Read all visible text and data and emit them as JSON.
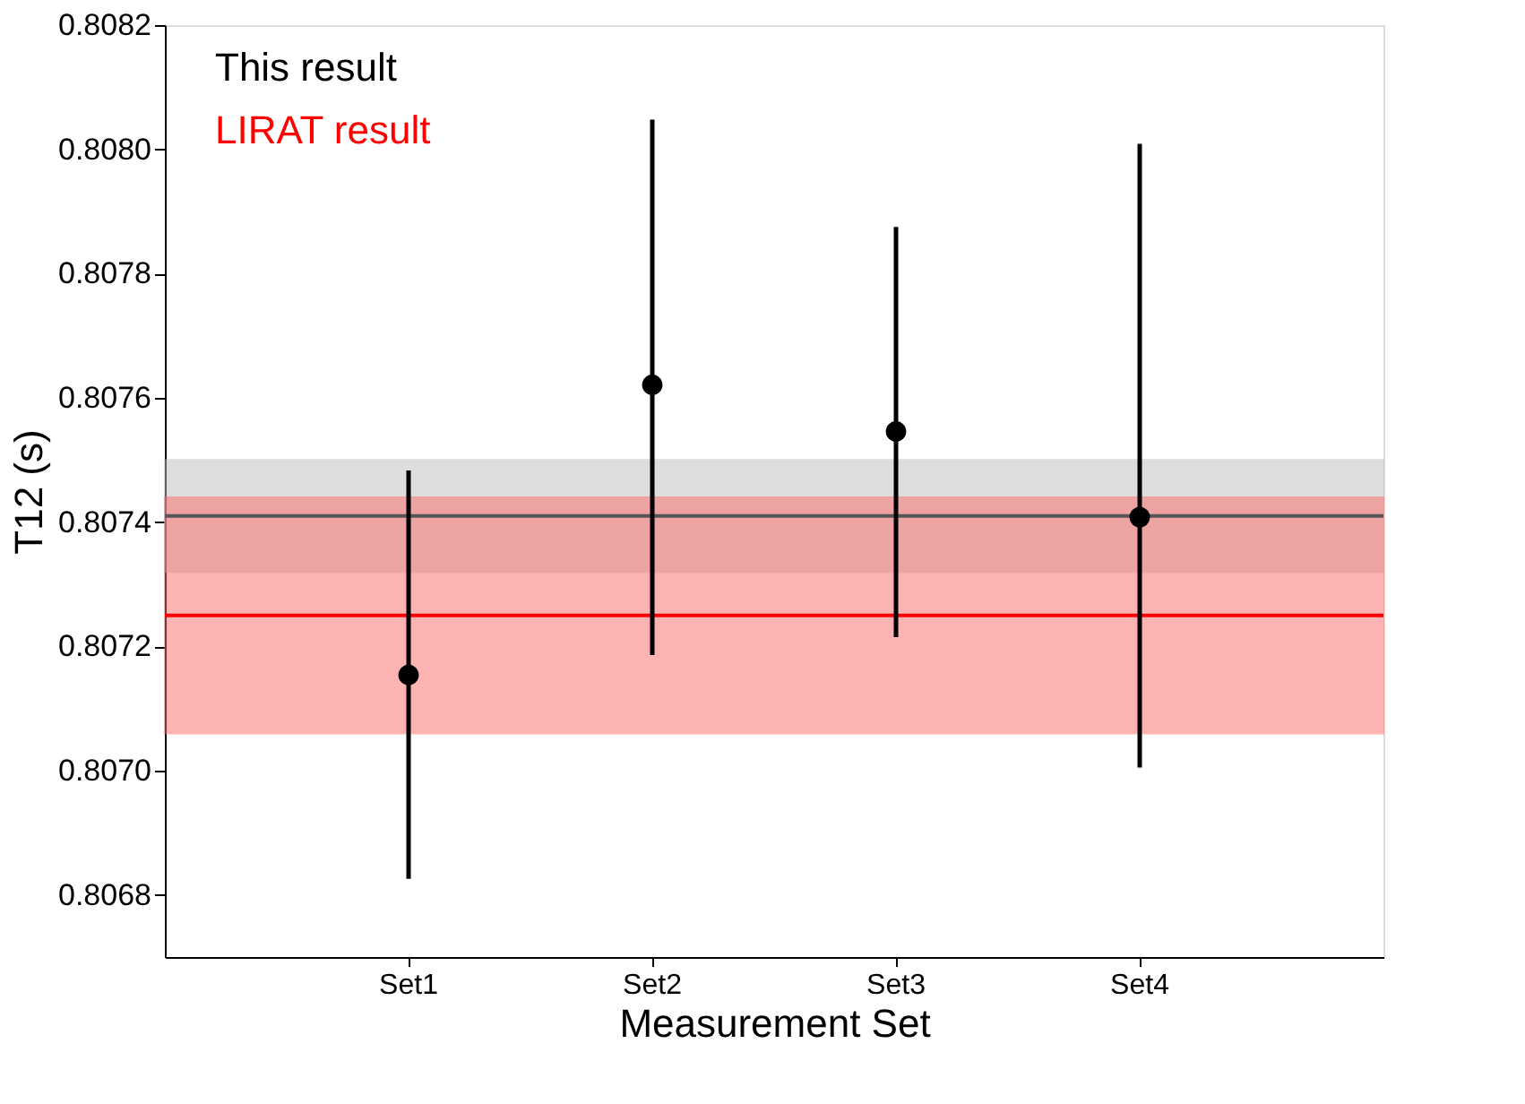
{
  "chart_data": {
    "type": "scatter",
    "xlabel": "Measurement  Set",
    "ylabel": "T12 (s)",
    "categories": [
      "Set1",
      "Set2",
      "Set3",
      "Set4"
    ],
    "series": [
      {
        "name": "This result",
        "color": "#000000",
        "values": [
          0.807154,
          0.807621,
          0.807546,
          0.807408
        ],
        "errors": [
          [
            0.806826,
            0.807483
          ],
          [
            0.807186,
            0.808048
          ],
          [
            0.807215,
            0.807875
          ],
          [
            0.807005,
            0.808009
          ]
        ]
      }
    ],
    "ylim": [
      0.8067,
      0.8082
    ],
    "yticks": [
      0.8068,
      {
        "value": 0.807,
        "label": "0.8070"
      },
      0.8072,
      0.8074,
      0.8076,
      0.8078,
      {
        "value": 0.808,
        "label": "0.8080"
      },
      0.8082
    ],
    "bands": [
      {
        "axis": "y",
        "from": 0.80732,
        "to": 0.8075,
        "color": "#bdbdbd"
      },
      {
        "axis": "y",
        "from": 0.80706,
        "to": 0.80744,
        "color": "#ff6b6b"
      }
    ],
    "annotations": [
      "LIRAT result"
    ],
    "ref_lines": [
      {
        "axis": "y",
        "value": 0.80741,
        "color": "#555555"
      },
      {
        "axis": "y",
        "value": 0.80725,
        "color": "#ff0000"
      }
    ],
    "marker": "circle",
    "grid": false,
    "legend": "top left"
  }
}
